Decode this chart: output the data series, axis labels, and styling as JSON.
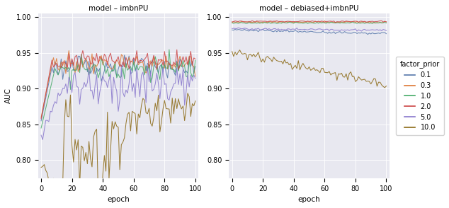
{
  "title_left": "model – imbnPU",
  "title_right": "model – debiased+imbnPU",
  "xlabel": "epoch",
  "ylabel": "AUC",
  "legend_title": "factor_prior",
  "legend_labels": [
    "0.1",
    "0.3",
    "1.0",
    "2.0",
    "5.0",
    "10.0"
  ],
  "colors": [
    "#5577aa",
    "#dd7733",
    "#44aa66",
    "#cc4444",
    "#8877cc",
    "#8b6914"
  ],
  "n_epochs": 100,
  "ylim": [
    0.775,
    1.005
  ],
  "yticks": [
    0.8,
    0.85,
    0.9,
    0.95,
    1.0
  ],
  "xticks": [
    0,
    20,
    40,
    60,
    80,
    100
  ],
  "background_color": "#e8e8f0",
  "figsize": [
    6.34,
    2.94
  ],
  "dpi": 100
}
